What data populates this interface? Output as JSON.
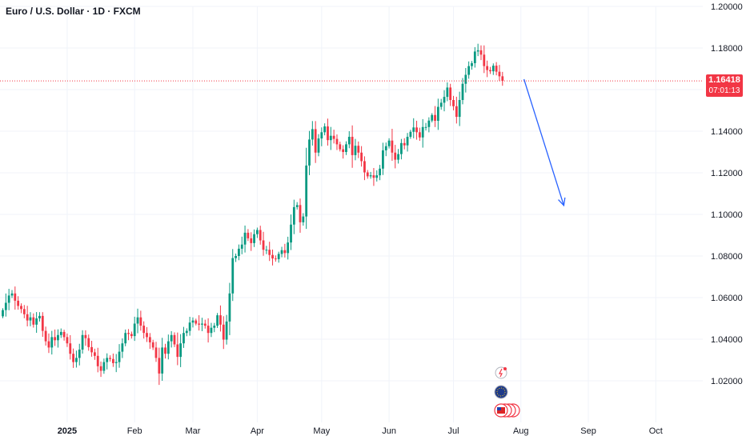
{
  "header": {
    "title": "Euro / U.S. Dollar · 1D · FXCM"
  },
  "price_tag": {
    "price": "1.16418",
    "countdown": "07:01:13",
    "color": "#f23645"
  },
  "colors": {
    "up": "#089981",
    "down": "#f23645",
    "arrow": "#2962ff",
    "grid": "#f0f3fa"
  },
  "events": [
    {
      "icon": "lightning-event-icon"
    },
    {
      "icon": "globe-event-icon"
    },
    {
      "icon": "us-flag-events-icon"
    }
  ],
  "chart_data": {
    "type": "candlestick",
    "y_ticks": [
      "1.20000",
      "1.18000",
      "1.16000",
      "1.14000",
      "1.12000",
      "1.10000",
      "1.08000",
      "1.06000",
      "1.04000",
      "1.02000"
    ],
    "x_ticks": [
      {
        "label": "2025",
        "bold": true
      },
      {
        "label": "Feb",
        "bold": false
      },
      {
        "label": "Mar",
        "bold": false
      },
      {
        "label": "Apr",
        "bold": false
      },
      {
        "label": "May",
        "bold": false
      },
      {
        "label": "Jun",
        "bold": false
      },
      {
        "label": "Jul",
        "bold": false
      },
      {
        "label": "Aug",
        "bold": false
      },
      {
        "label": "Sep",
        "bold": false
      },
      {
        "label": "Oct",
        "bold": false
      }
    ],
    "ylim": [
      1.0,
      1.2
    ],
    "last_price": 1.16418,
    "closes": [
      1.054,
      1.0575,
      1.061,
      1.062,
      1.0585,
      1.056,
      1.0545,
      1.052,
      1.049,
      1.0505,
      1.047,
      1.05,
      1.0512,
      1.044,
      1.039,
      1.036,
      1.041,
      1.0395,
      1.042,
      1.0435,
      1.041,
      1.038,
      1.033,
      1.029,
      1.031,
      1.035,
      1.042,
      1.0405,
      1.0362,
      1.0337,
      1.032,
      1.027,
      1.0248,
      1.029,
      1.031,
      1.0305,
      1.0285,
      1.029,
      1.034,
      1.038,
      1.043,
      1.0425,
      1.0415,
      1.0475,
      1.0505,
      1.0465,
      1.043,
      1.041,
      1.0385,
      1.036,
      1.031,
      1.0235,
      1.036,
      1.033,
      1.039,
      1.042,
      1.0375,
      1.0315,
      1.038,
      1.043,
      1.044,
      1.048,
      1.049,
      1.0475,
      1.047,
      1.0475,
      1.0465,
      1.043,
      1.0455,
      1.0465,
      1.0515,
      1.047,
      1.0398,
      1.0485,
      1.062,
      1.079,
      1.08,
      1.0835,
      1.0855,
      1.0912,
      1.0885,
      1.0862,
      1.0905,
      1.0925,
      1.0875,
      1.083,
      1.083,
      1.0805,
      1.0788,
      1.0785,
      1.081,
      1.0828,
      1.0814,
      1.0865,
      1.0951,
      1.1035,
      1.1045,
      1.0962,
      1.099,
      1.1235,
      1.136,
      1.141,
      1.1297,
      1.1365,
      1.1395,
      1.1423,
      1.1357,
      1.1378,
      1.1363,
      1.1337,
      1.1313,
      1.13,
      1.1337,
      1.1373,
      1.1285,
      1.133,
      1.1297,
      1.1256,
      1.1202,
      1.1183,
      1.1188,
      1.1176,
      1.1188,
      1.122,
      1.1308,
      1.1328,
      1.1355,
      1.1297,
      1.1263,
      1.129,
      1.1343,
      1.1332,
      1.1373,
      1.1397,
      1.1418,
      1.1395,
      1.137,
      1.142,
      1.142,
      1.1451,
      1.1478,
      1.145,
      1.1517,
      1.1537,
      1.1565,
      1.161,
      1.155,
      1.152,
      1.1469,
      1.155,
      1.1628,
      1.1671,
      1.1713,
      1.1727,
      1.1783,
      1.1789,
      1.1768,
      1.1713,
      1.1694,
      1.1688,
      1.1715,
      1.1686,
      1.1664,
      1.1642
    ],
    "annotation": {
      "type": "arrow",
      "from_date": "Jul 24",
      "from_price": 1.165,
      "to_date": "Aug 11",
      "to_price": 1.1043
    }
  }
}
